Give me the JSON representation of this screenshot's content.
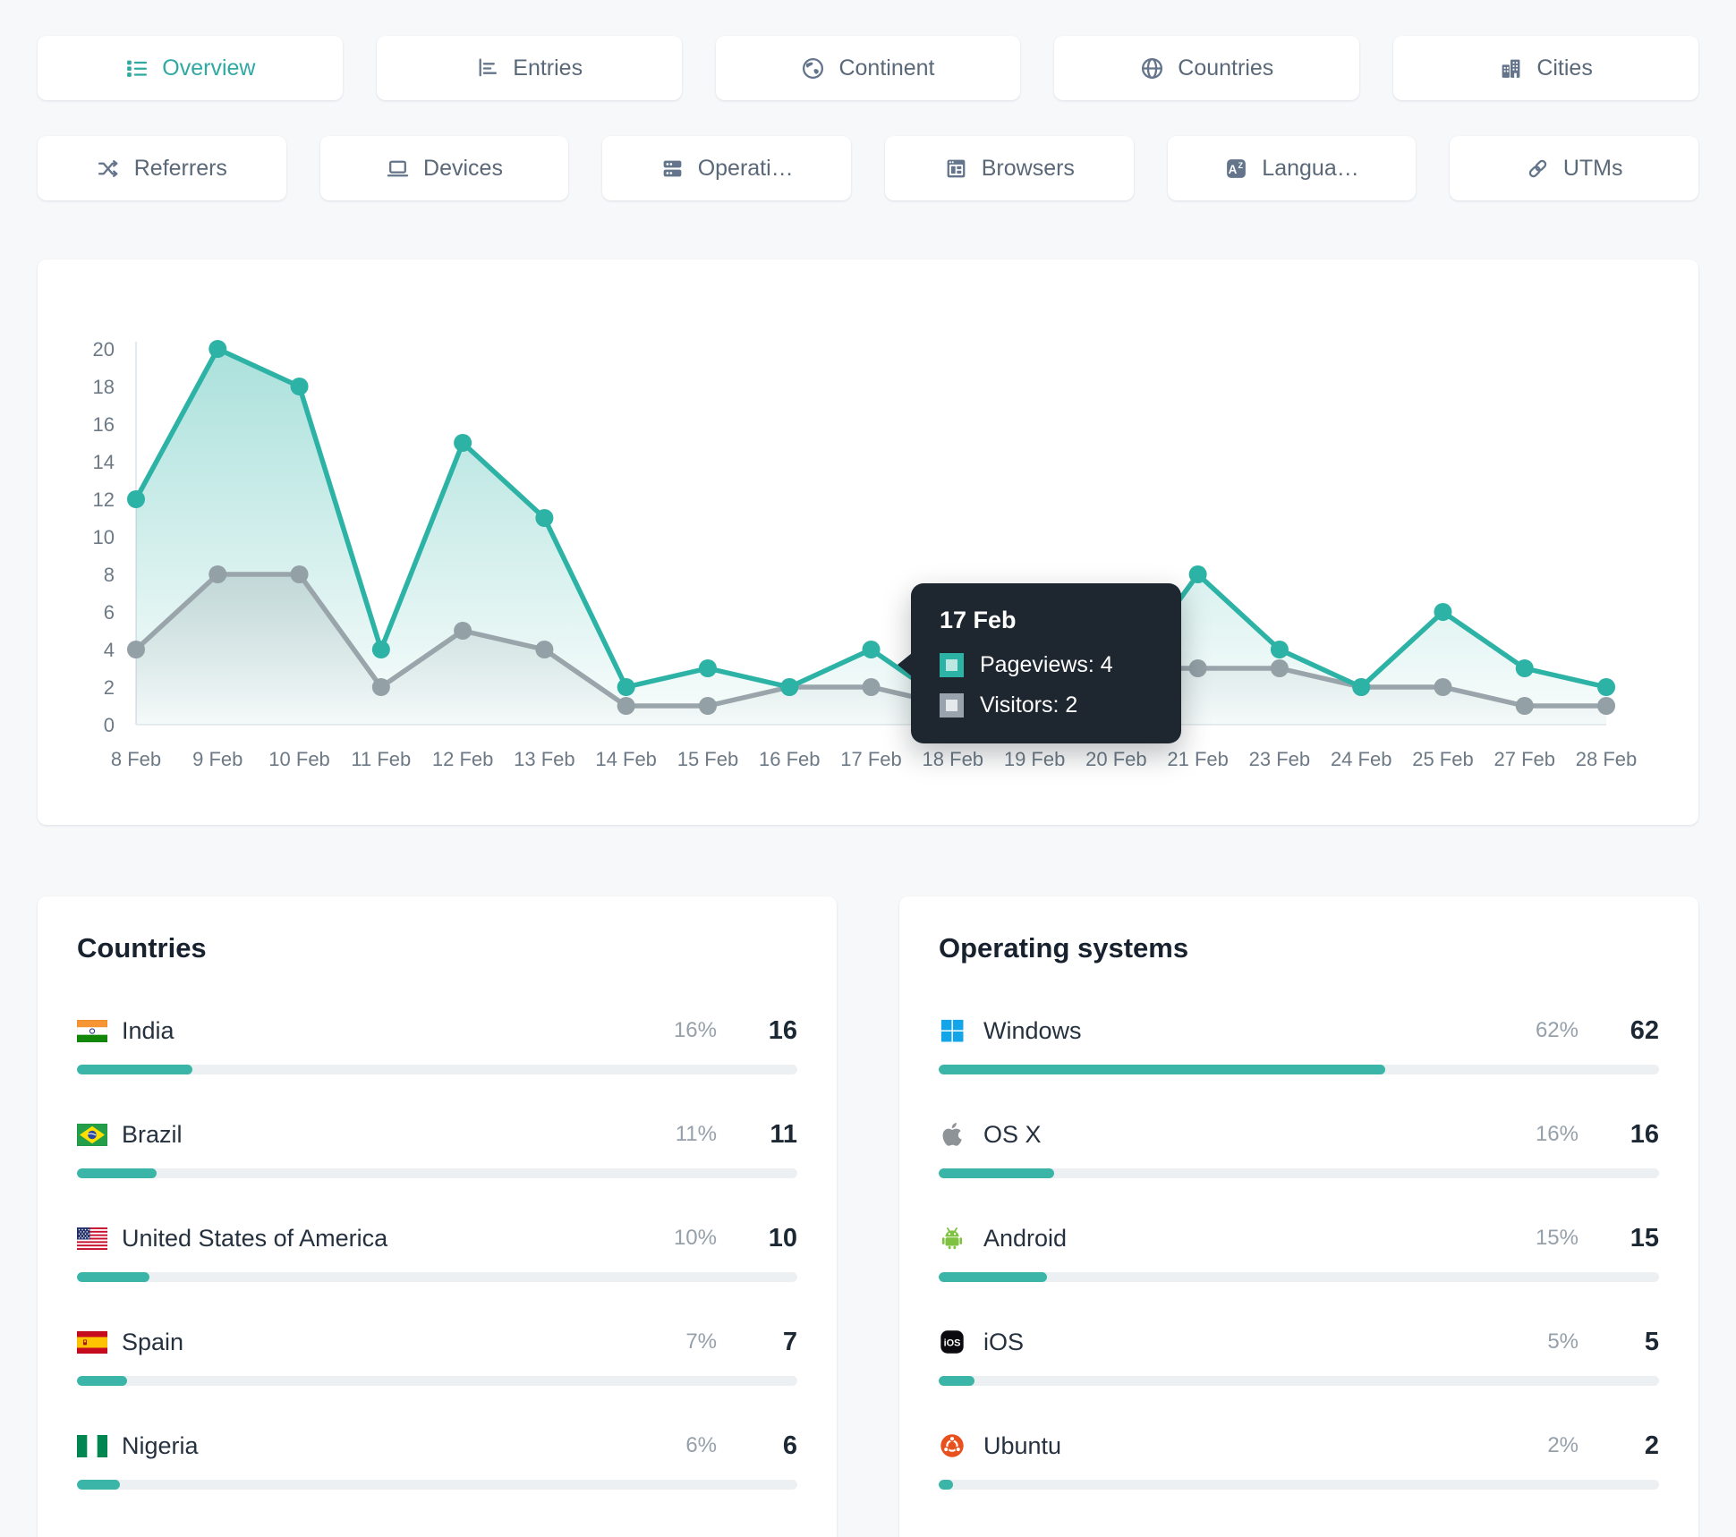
{
  "accent": "#2fb0a4",
  "tabs": {
    "row1": [
      {
        "label": "Overview",
        "icon": "list-icon",
        "active": true
      },
      {
        "label": "Entries",
        "icon": "entries-chart-icon",
        "active": false
      },
      {
        "label": "Continent",
        "icon": "continent-icon",
        "active": false
      },
      {
        "label": "Countries",
        "icon": "globe-icon",
        "active": false
      },
      {
        "label": "Cities",
        "icon": "buildings-icon",
        "active": false
      }
    ],
    "row2": [
      {
        "label": "Referrers",
        "icon": "shuffle-icon",
        "active": false
      },
      {
        "label": "Devices",
        "icon": "laptop-icon",
        "active": false
      },
      {
        "label": "Operati…",
        "icon": "servers-icon",
        "active": false
      },
      {
        "label": "Browsers",
        "icon": "browser-icon",
        "active": false
      },
      {
        "label": "Langua…",
        "icon": "language-icon",
        "active": false
      },
      {
        "label": "UTMs",
        "icon": "link-icon",
        "active": false
      }
    ]
  },
  "chart_data": {
    "type": "area",
    "categories": [
      "8 Feb",
      "9 Feb",
      "10 Feb",
      "11 Feb",
      "12 Feb",
      "13 Feb",
      "14 Feb",
      "15 Feb",
      "16 Feb",
      "17 Feb",
      "18 Feb",
      "19 Feb",
      "20 Feb",
      "21 Feb",
      "23 Feb",
      "24 Feb",
      "25 Feb",
      "27 Feb",
      "28 Feb"
    ],
    "series": [
      {
        "name": "Pageviews",
        "color": "#2db3a6",
        "values": [
          12,
          20,
          18,
          4,
          15,
          11,
          2,
          3,
          2,
          4,
          1,
          1,
          2,
          8,
          4,
          2,
          6,
          3,
          2
        ]
      },
      {
        "name": "Visitors",
        "color": "#9aa5ab",
        "values": [
          4,
          8,
          8,
          2,
          5,
          4,
          1,
          1,
          2,
          2,
          1,
          1,
          3,
          3,
          3,
          2,
          2,
          1,
          1
        ]
      }
    ],
    "title": "",
    "xlabel": "",
    "ylabel": "",
    "ylim": [
      0,
      20
    ],
    "yticks": [
      0,
      2,
      4,
      6,
      8,
      10,
      12,
      14,
      16,
      18,
      20
    ],
    "grid": false,
    "legend_position": "none"
  },
  "tooltip": {
    "date": "17 Feb",
    "rows": [
      {
        "label": "Pageviews",
        "value": "4",
        "color": "#2db3a6"
      },
      {
        "label": "Visitors",
        "value": "2",
        "color": "#99a3ad"
      }
    ]
  },
  "panels": [
    {
      "title": "Countries",
      "rows": [
        {
          "name": "India",
          "icon": "flag-india",
          "pct_label": "16%",
          "pct": 16,
          "count": "16"
        },
        {
          "name": "Brazil",
          "icon": "flag-brazil",
          "pct_label": "11%",
          "pct": 11,
          "count": "11"
        },
        {
          "name": "United States of America",
          "icon": "flag-usa",
          "pct_label": "10%",
          "pct": 10,
          "count": "10"
        },
        {
          "name": "Spain",
          "icon": "flag-spain",
          "pct_label": "7%",
          "pct": 7,
          "count": "7"
        },
        {
          "name": "Nigeria",
          "icon": "flag-nigeria",
          "pct_label": "6%",
          "pct": 6,
          "count": "6"
        }
      ]
    },
    {
      "title": "Operating systems",
      "rows": [
        {
          "name": "Windows",
          "icon": "windows-logo",
          "pct_label": "62%",
          "pct": 62,
          "count": "62"
        },
        {
          "name": "OS X",
          "icon": "apple-logo",
          "pct_label": "16%",
          "pct": 16,
          "count": "16"
        },
        {
          "name": "Android",
          "icon": "android-logo",
          "pct_label": "15%",
          "pct": 15,
          "count": "15"
        },
        {
          "name": "iOS",
          "icon": "ios-logo",
          "pct_label": "5%",
          "pct": 5,
          "count": "5"
        },
        {
          "name": "Ubuntu",
          "icon": "ubuntu-logo",
          "pct_label": "2%",
          "pct": 2,
          "count": "2"
        }
      ]
    }
  ]
}
